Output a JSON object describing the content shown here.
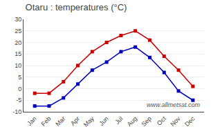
{
  "chart_data": {
    "type": "line",
    "title": "Otaru : temperatures (°C)",
    "categories": [
      "Jan",
      "Feb",
      "Mar",
      "Apr",
      "May",
      "Jun",
      "Jul",
      "Aug",
      "Sep",
      "Oct",
      "Nov",
      "Dec"
    ],
    "series": [
      {
        "color": "#cc0000",
        "marker": "square",
        "line_style": "solid",
        "values": [
          -2,
          -2,
          3,
          10,
          16,
          20,
          23,
          25,
          21,
          14,
          8,
          1
        ]
      },
      {
        "color": "#0000bb",
        "marker": "square",
        "line_style": "solid",
        "values": [
          -7.5,
          -7.5,
          -4,
          2,
          8,
          11.5,
          16,
          18,
          13.5,
          7,
          -1,
          -5
        ]
      }
    ],
    "ylim": [
      -10,
      30
    ],
    "yticks": [
      -10,
      -5,
      0,
      5,
      10,
      15,
      20,
      25,
      30
    ],
    "grid": true,
    "annotations": [
      "www.allmetsat.com"
    ]
  }
}
